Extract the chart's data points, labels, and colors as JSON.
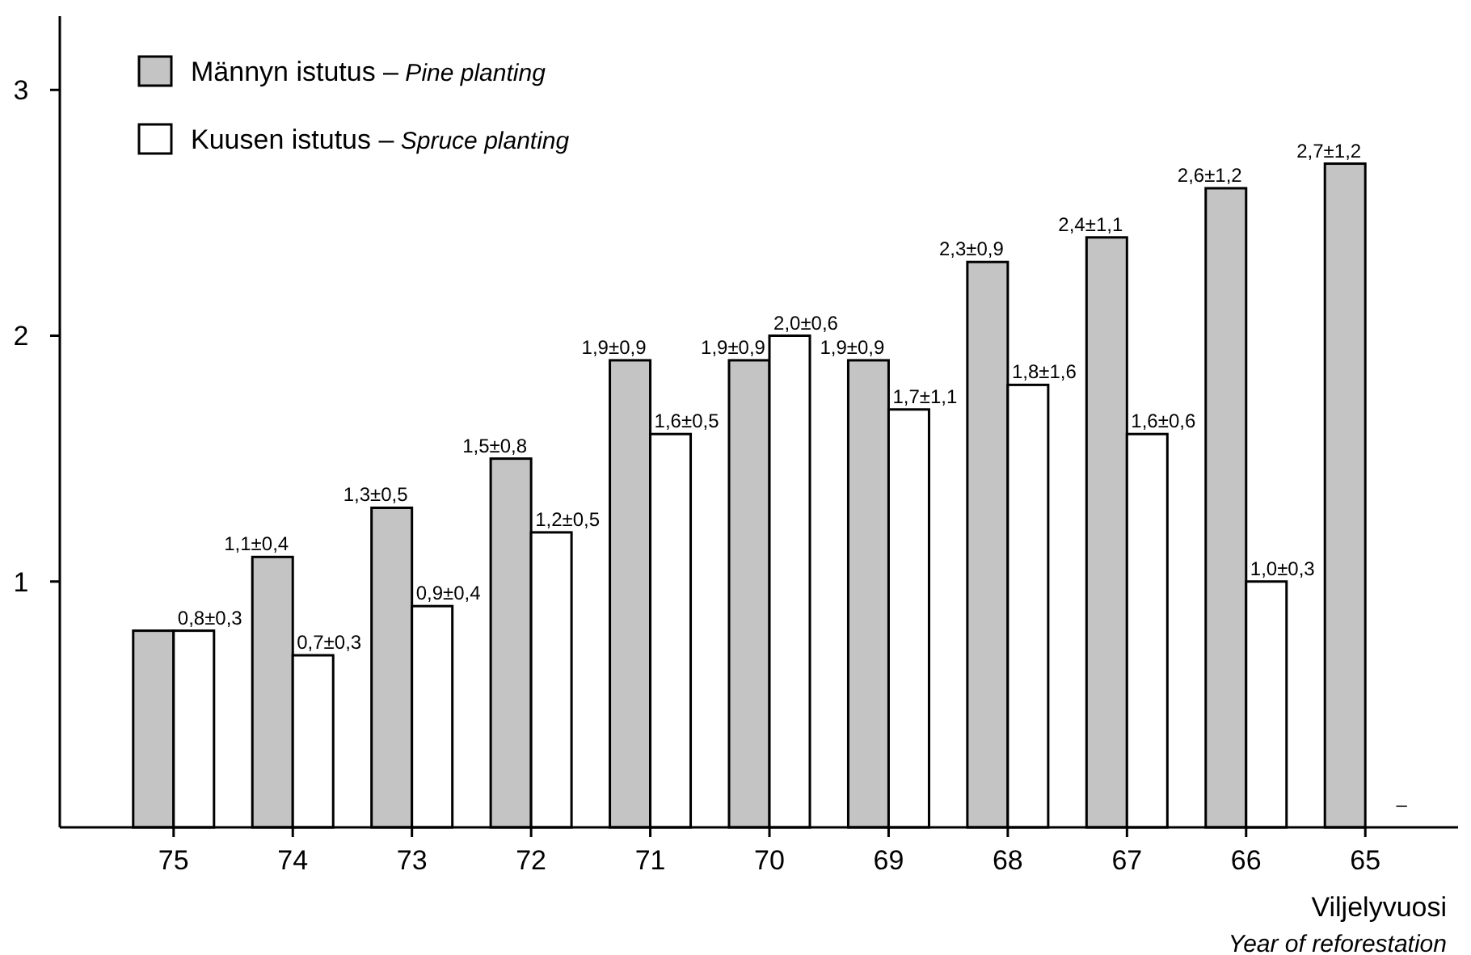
{
  "chart_data": {
    "type": "bar",
    "categories": [
      "75",
      "74",
      "73",
      "72",
      "71",
      "70",
      "69",
      "68",
      "67",
      "66",
      "65"
    ],
    "series": [
      {
        "name": "Männyn istutus – Pine planting",
        "color": "#c4c4c4",
        "values": [
          0.8,
          1.1,
          1.3,
          1.5,
          1.9,
          1.9,
          1.9,
          2.3,
          2.4,
          2.6,
          2.7
        ],
        "value_labels": [
          null,
          "1,1±0,4",
          "1,3±0,5",
          "1,5±0,8",
          "1,9±0,9",
          "1,9±0,9",
          "1,9±0,9",
          "2,3±0,9",
          "2,4±1,1",
          "2,6±1,2",
          "2,7±1,2"
        ]
      },
      {
        "name": "Kuusen istutus – Spruce planting",
        "color": "#ffffff",
        "values": [
          0.8,
          0.7,
          0.9,
          1.2,
          1.6,
          2.0,
          1.7,
          1.8,
          1.6,
          1.0,
          null
        ],
        "value_labels": [
          "0,8±0,3",
          "0,7±0,3",
          "0,9±0,4",
          "1,2±0,5",
          "1,6±0,5",
          "2,0±0,6",
          "1,7±1,1",
          "1,8±1,6",
          "1,6±0,6",
          "1,0±0,3",
          "–"
        ]
      }
    ],
    "xlabel": "Viljelyvuosi\nYear of reforestation",
    "ylim": [
      0,
      3.3
    ],
    "yticks": [
      1,
      2,
      3
    ],
    "grid": false,
    "legend": "top left"
  }
}
